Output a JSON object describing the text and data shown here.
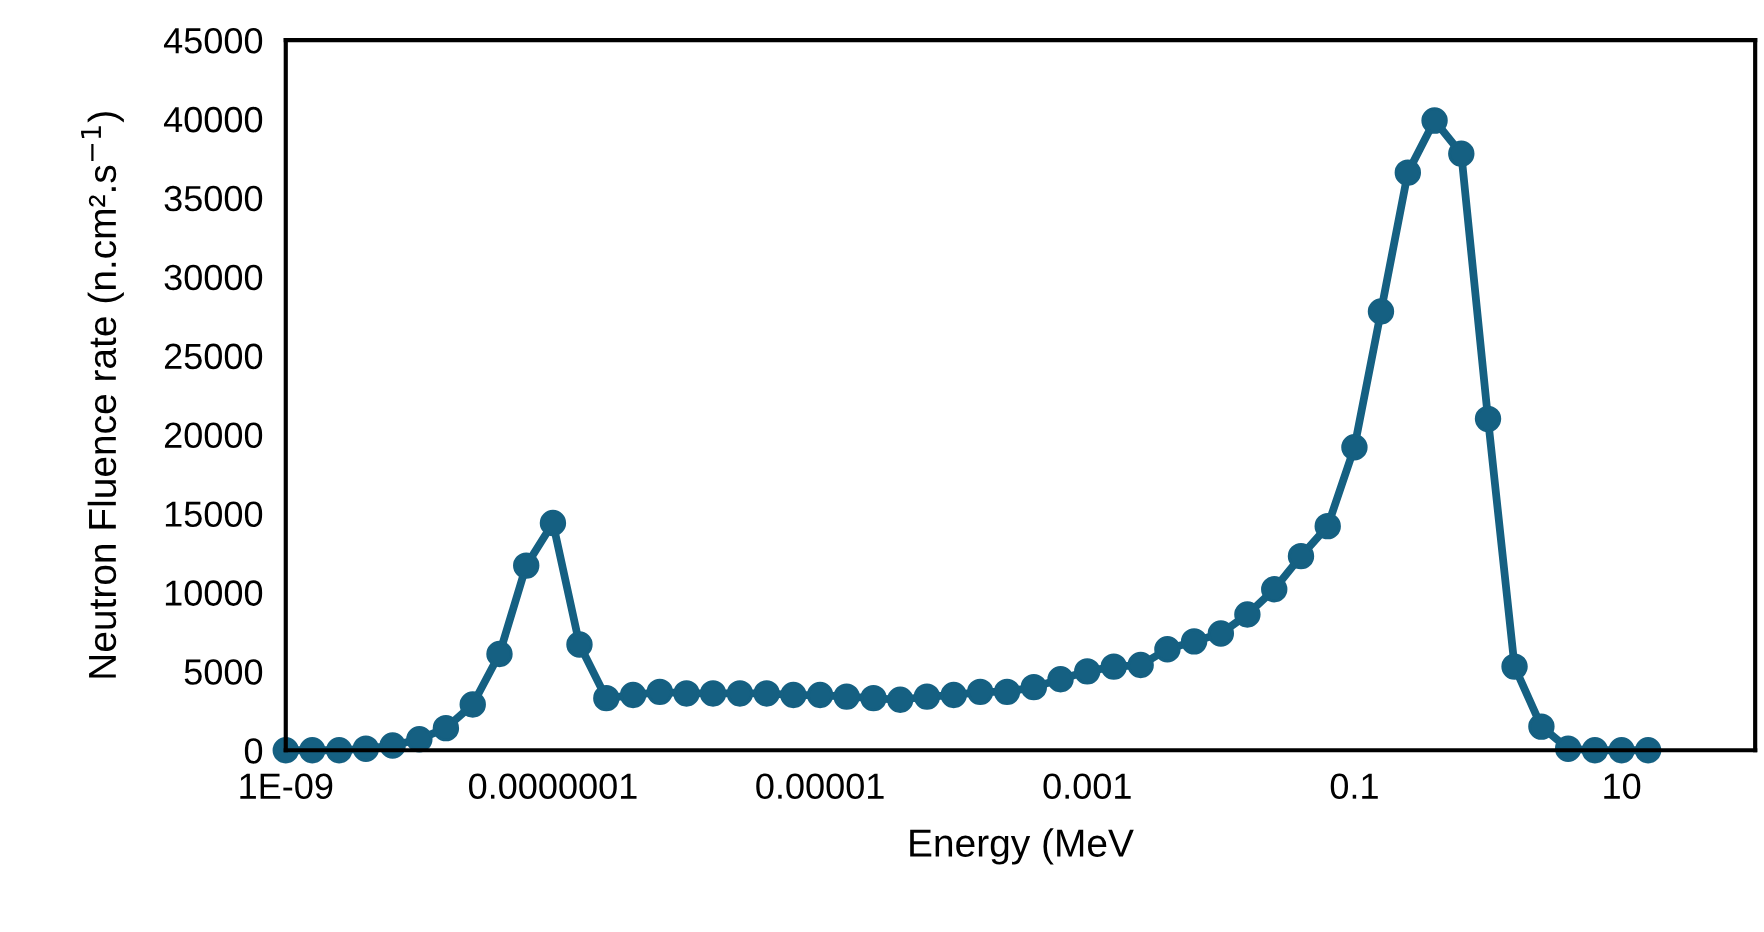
{
  "chart_data": {
    "type": "line",
    "xlabel": "Energy (MeV",
    "ylabel": "Neutron Fluence rate (n.cm².s$^{−1}$)",
    "x": [
      1e-09,
      1.58e-09,
      2.51e-09,
      3.98e-09,
      6.31e-09,
      1e-08,
      1.58e-08,
      2.51e-08,
      3.98e-08,
      6.31e-08,
      1e-07,
      1.58e-07,
      2.51e-07,
      3.98e-07,
      6.31e-07,
      1e-06,
      1.58e-06,
      2.51e-06,
      3.98e-06,
      6.31e-06,
      1e-05,
      1.58e-05,
      2.51e-05,
      3.98e-05,
      6.31e-05,
      0.0001,
      0.000158,
      0.000251,
      0.000398,
      0.000631,
      0.001,
      0.00158,
      0.00251,
      0.00398,
      0.00631,
      0.01,
      0.0158,
      0.0251,
      0.0398,
      0.0631,
      0.1,
      0.158,
      0.251,
      0.398,
      0.631,
      1,
      1.58,
      2.51,
      3.98,
      6.31,
      10,
      15.8
    ],
    "series": [
      {
        "color": "#156082",
        "values": [
          0,
          0,
          0,
          100,
          300,
          700,
          1400,
          2900,
          6100,
          11700,
          14400,
          6700,
          3300,
          3500,
          3700,
          3600,
          3600,
          3600,
          3600,
          3500,
          3500,
          3400,
          3300,
          3200,
          3400,
          3500,
          3700,
          3700,
          4000,
          4500,
          5000,
          5300,
          5400,
          6400,
          6900,
          7400,
          8600,
          10200,
          12300,
          14200,
          19200,
          27800,
          36600,
          39900,
          37800,
          21000,
          5300,
          1500,
          100,
          0,
          0,
          0
        ]
      }
    ],
    "log": "x",
    "xlim": [
      1e-09,
      100
    ],
    "xticks": [
      {
        "value": 1e-09,
        "label": "1E-09"
      },
      {
        "value": 1e-07,
        "label": "0.0000001"
      },
      {
        "value": 1e-05,
        "label": "0.00001"
      },
      0.001,
      0.1,
      10
    ],
    "ylim": [
      0,
      45000
    ],
    "yticks": [
      0,
      5000,
      10000,
      15000,
      20000,
      25000,
      30000,
      35000,
      40000,
      45000
    ],
    "grid": false,
    "marker": "circle",
    "line_style": "solid"
  }
}
